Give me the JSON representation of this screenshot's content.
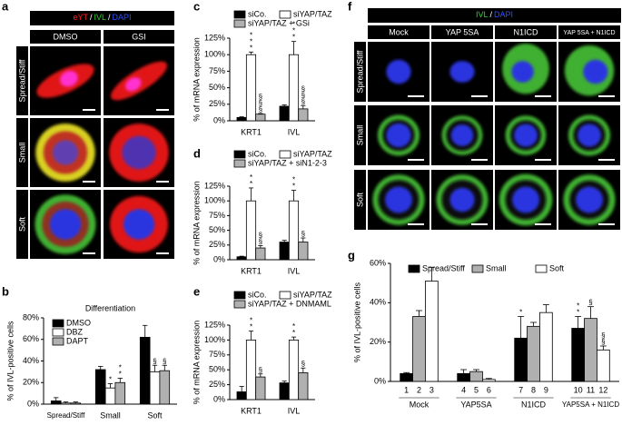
{
  "panels": {
    "a": {
      "letter": "a",
      "stain": [
        "eYT",
        "IVL",
        "DAPI"
      ],
      "separator": "/",
      "columns": [
        "DMSO",
        "GSI"
      ],
      "rows": [
        "Spread/Stiff",
        "Small",
        "Soft"
      ]
    },
    "f": {
      "letter": "f",
      "stain": [
        "IVL",
        "DAPI"
      ],
      "separator": "/",
      "columns": [
        "Mock",
        "YAP 5SA",
        "N1ICD",
        "YAP 5SA + N1ICD"
      ],
      "rows": [
        "Spread/Stiff",
        "Small",
        "Soft"
      ]
    }
  },
  "chart_data": [
    {
      "type": "bar",
      "letter": "b",
      "title": "Differentiation",
      "ylabel": "% of IVL-positive cells",
      "categories": [
        "Spread/Stiff",
        "Small",
        "Soft"
      ],
      "ylim": [
        0,
        80
      ],
      "yticks": [
        {
          "value": 0,
          "label": "0%"
        },
        {
          "value": 20,
          "label": "20%"
        },
        {
          "value": 40,
          "label": "40%"
        },
        {
          "value": 60,
          "label": "60%"
        },
        {
          "value": 80,
          "label": "80%"
        }
      ],
      "legend": "top-left",
      "series": [
        {
          "name": "DMSO",
          "color": "#000000",
          "values": [
            3,
            32,
            62
          ],
          "errors": [
            3,
            3,
            11
          ],
          "significance": [
            null,
            null,
            null
          ]
        },
        {
          "name": "DBZ",
          "color": "#ffffff",
          "values": [
            1,
            15,
            30
          ],
          "errors": [
            1,
            4,
            6
          ],
          "significance": [
            null,
            "*",
            "§"
          ]
        },
        {
          "name": "DAPT",
          "color": "#b0b0b0",
          "values": [
            1,
            20,
            31
          ],
          "errors": [
            1,
            4,
            5
          ],
          "significance": [
            null,
            "**",
            "§"
          ]
        }
      ]
    },
    {
      "type": "bar",
      "letter": "c",
      "ylabel": "% of mRNA expression",
      "categories": [
        "KRT1",
        "IVL"
      ],
      "ylim": [
        0,
        125
      ],
      "yticks": [
        {
          "value": 0,
          "label": "0%"
        },
        {
          "value": 25,
          "label": "25%"
        },
        {
          "value": 50,
          "label": "50%"
        },
        {
          "value": 75,
          "label": "75%"
        },
        {
          "value": 100,
          "label": "100%"
        },
        {
          "value": 125,
          "label": "125%"
        }
      ],
      "legend": "top",
      "series": [
        {
          "name": "siCo.",
          "color": "#000000",
          "values": [
            5,
            22
          ],
          "errors": [
            1,
            2
          ],
          "significance": [
            null,
            null
          ]
        },
        {
          "name": "siYAP/TAZ",
          "color": "#ffffff",
          "values": [
            100,
            100
          ],
          "errors": [
            4,
            20
          ],
          "significance": [
            "***",
            "***"
          ]
        },
        {
          "name": "siYAP/TAZ + GSi",
          "color": "#b0b0b0",
          "values": [
            10,
            18
          ],
          "errors": [
            1,
            5
          ],
          "significance": [
            "§§§",
            "§§§"
          ]
        }
      ]
    },
    {
      "type": "bar",
      "letter": "d",
      "ylabel": "% of mRNA expression",
      "categories": [
        "KRT1",
        "IVL"
      ],
      "ylim": [
        0,
        125
      ],
      "yticks": [
        {
          "value": 0,
          "label": "0%"
        },
        {
          "value": 25,
          "label": "25%"
        },
        {
          "value": 50,
          "label": "50%"
        },
        {
          "value": 75,
          "label": "75%"
        },
        {
          "value": 100,
          "label": "100%"
        },
        {
          "value": 125,
          "label": "125%"
        }
      ],
      "legend": "top",
      "series": [
        {
          "name": "siCo.",
          "color": "#000000",
          "values": [
            5,
            30
          ],
          "errors": [
            1,
            3
          ],
          "significance": [
            null,
            null
          ]
        },
        {
          "name": "siYAP/TAZ",
          "color": "#ffffff",
          "values": [
            100,
            100
          ],
          "errors": [
            22,
            18
          ],
          "significance": [
            "**",
            "**"
          ]
        },
        {
          "name": "siYAP/TAZ + siN1-2-3",
          "color": "#b0b0b0",
          "values": [
            20,
            30
          ],
          "errors": [
            4,
            7
          ],
          "significance": [
            "§§",
            "§"
          ]
        }
      ]
    },
    {
      "type": "bar",
      "letter": "e",
      "ylabel": "% of mRNA expression",
      "categories": [
        "KRT1",
        "IVL"
      ],
      "ylim": [
        0,
        125
      ],
      "yticks": [
        {
          "value": 0,
          "label": "0%"
        },
        {
          "value": 25,
          "label": "25%"
        },
        {
          "value": 50,
          "label": "50%"
        },
        {
          "value": 75,
          "label": "75%"
        },
        {
          "value": 100,
          "label": "100%"
        },
        {
          "value": 125,
          "label": "125%"
        }
      ],
      "legend": "top",
      "series": [
        {
          "name": "siCo.",
          "color": "#000000",
          "values": [
            13,
            28
          ],
          "errors": [
            9,
            3
          ],
          "significance": [
            null,
            null
          ]
        },
        {
          "name": "siYAP/TAZ",
          "color": "#ffffff",
          "values": [
            100,
            100
          ],
          "errors": [
            15,
            5
          ],
          "significance": [
            "**",
            "**"
          ]
        },
        {
          "name": "siYAP/TAZ + DNMAML",
          "color": "#b0b0b0",
          "values": [
            38,
            45
          ],
          "errors": [
            5,
            8
          ],
          "significance": [
            "§",
            "§"
          ]
        }
      ]
    },
    {
      "type": "bar",
      "letter": "g",
      "ylabel": "% of IVL-positive cells",
      "categories": [
        "Mock",
        "YAP5SA",
        "N1ICD",
        "YAP5SA + N1ICD"
      ],
      "ylim": [
        0,
        60
      ],
      "yticks": [
        {
          "value": 0,
          "label": "0%"
        },
        {
          "value": 20,
          "label": "20%"
        },
        {
          "value": 40,
          "label": "40%"
        },
        {
          "value": 60,
          "label": "60%"
        }
      ],
      "legend": "top",
      "series": [
        {
          "name": "Spread/Stiff",
          "color": "#000000",
          "values": [
            4,
            4,
            22,
            27
          ],
          "errors": [
            0.5,
            2,
            11,
            6
          ],
          "significance": [
            null,
            null,
            "*",
            "**"
          ],
          "bar_labels": [
            "1",
            "4",
            "7",
            "10"
          ]
        },
        {
          "name": "Small",
          "color": "#b0b0b0",
          "values": [
            33,
            5,
            28,
            32
          ],
          "errors": [
            3,
            1,
            2,
            6
          ],
          "significance": [
            null,
            null,
            null,
            "§"
          ],
          "bar_labels": [
            "2",
            "5",
            "8",
            "11"
          ]
        },
        {
          "name": "Soft",
          "color": "#ffffff",
          "values": [
            51,
            1,
            35,
            16
          ],
          "errors": [
            7,
            0.5,
            4,
            2
          ],
          "significance": [
            null,
            null,
            null,
            "§§"
          ],
          "bar_labels": [
            "3",
            "6",
            "9",
            "12"
          ]
        }
      ]
    }
  ]
}
